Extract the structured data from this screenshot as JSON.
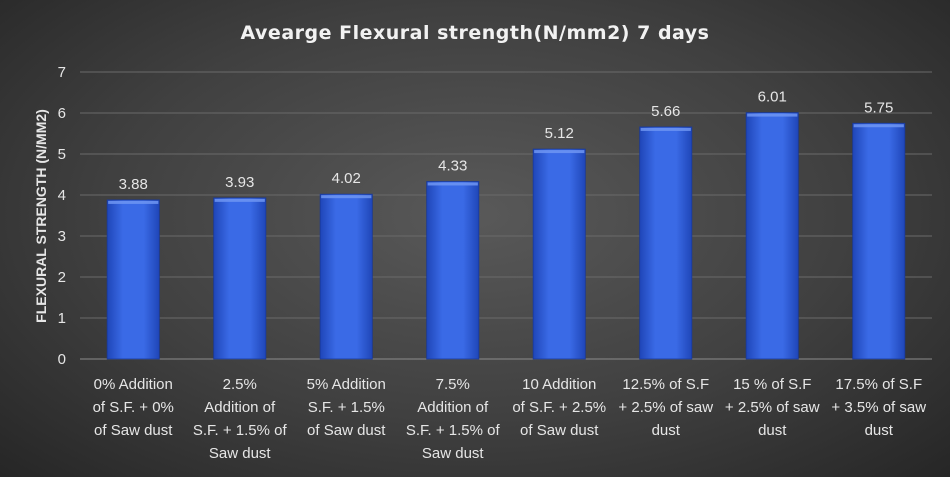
{
  "chart_data": {
    "type": "bar",
    "title": "Avearge Flexural strength(N/mm2) 7 days",
    "ylabel": "FLEXURAL STRENGTH (N/MM2)",
    "xlabel": "",
    "ylim": [
      0,
      7
    ],
    "yticks": [
      0,
      1,
      2,
      3,
      4,
      5,
      6,
      7
    ],
    "grid": true,
    "legend": "none",
    "bar_color": "#3366e0",
    "categories": [
      [
        "0% Addition",
        "of S.F. + 0%",
        "of Saw dust"
      ],
      [
        "2.5%",
        "Addition of",
        "S.F. + 1.5% of",
        "Saw dust"
      ],
      [
        "5% Addition",
        "S.F. + 1.5%",
        "of Saw dust"
      ],
      [
        "7.5%",
        "Addition of",
        "S.F. + 1.5% of",
        "Saw dust"
      ],
      [
        "10 Addition",
        "of S.F. + 2.5%",
        "of Saw dust"
      ],
      [
        "12.5% of S.F",
        "+ 2.5% of saw",
        "dust"
      ],
      [
        "15 % of S.F",
        "+ 2.5% of saw",
        "dust"
      ],
      [
        "17.5% of S.F",
        "+ 3.5% of saw",
        "dust"
      ]
    ],
    "values": [
      3.88,
      3.93,
      4.02,
      4.33,
      5.12,
      5.66,
      6.01,
      5.75
    ],
    "data_labels": [
      "3.88",
      "3.93",
      "4.02",
      "4.33",
      "5.12",
      "5.66",
      "6.01",
      "5.75"
    ]
  }
}
